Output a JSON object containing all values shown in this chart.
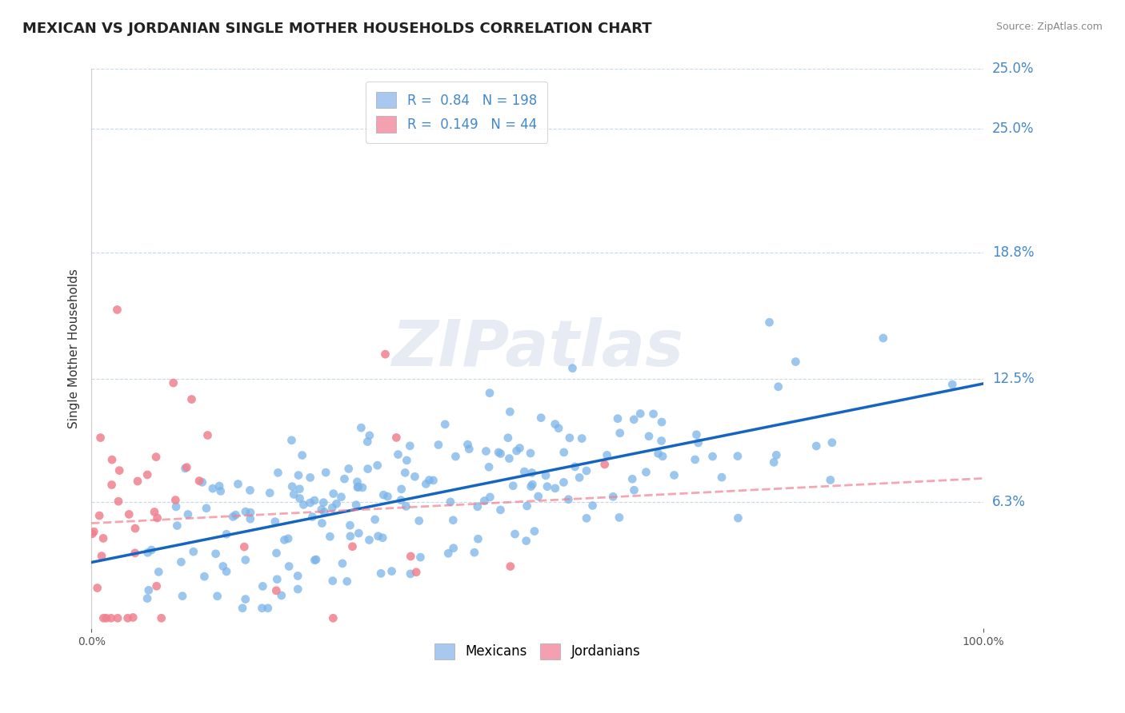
{
  "title": "MEXICAN VS JORDANIAN SINGLE MOTHER HOUSEHOLDS CORRELATION CHART",
  "source_text": "Source: ZipAtlas.com",
  "ylabel": "Single Mother Households",
  "xlabel": "",
  "xlim": [
    0.0,
    1.0
  ],
  "ylim": [
    0.0,
    0.28
  ],
  "ytick_labels": [
    "6.3%",
    "12.5%",
    "18.8%",
    "25.0%"
  ],
  "ytick_values": [
    0.063,
    0.125,
    0.188,
    0.25
  ],
  "xtick_labels": [
    "0.0%",
    "100.0%"
  ],
  "xtick_values": [
    0.0,
    1.0
  ],
  "mexican_R": 0.84,
  "mexican_N": 198,
  "jordanian_R": 0.149,
  "jordanian_N": 44,
  "legend_entries": [
    {
      "label": "Mexicans",
      "color": "#a8c8f0"
    },
    {
      "label": "Jordanians",
      "color": "#f4a0b0"
    }
  ],
  "mexican_scatter_color": "#7ab4e8",
  "jordanian_scatter_color": "#f08090",
  "mexican_line_color": "#1565c0",
  "jordanian_line_color": "#e06070",
  "watermark_text": "ZIPatlas",
  "watermark_color": "#d0d8e8",
  "background_color": "#ffffff",
  "grid_color": "#c8d8e8",
  "title_fontsize": 13,
  "axis_label_fontsize": 11,
  "tick_fontsize": 10,
  "legend_fontsize": 12,
  "annotation_fontsize": 12,
  "annotation_color": "#4488cc"
}
